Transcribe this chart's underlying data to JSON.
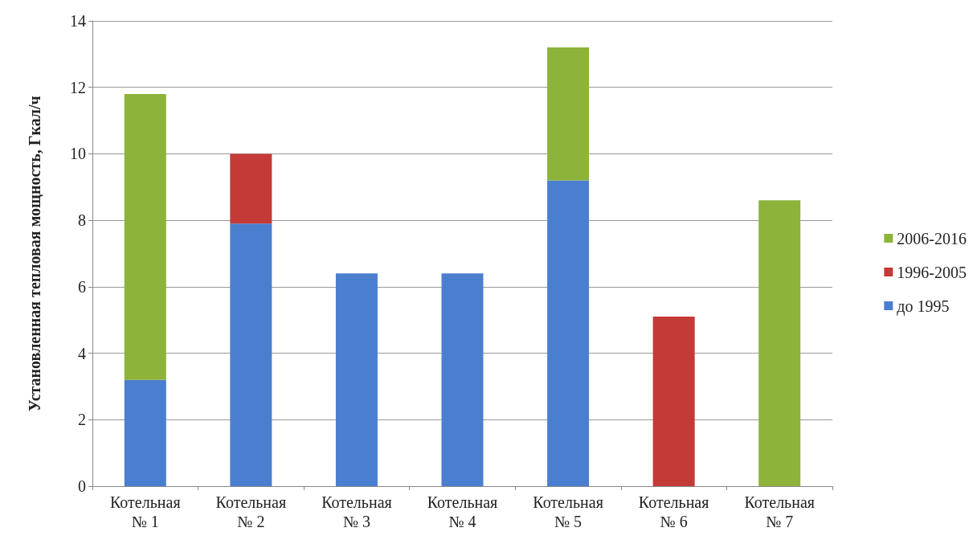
{
  "chart_data": {
    "type": "bar",
    "stacked": true,
    "ylabel": "Установленная тепловая мощность, Гкал/ч",
    "categories": [
      "Котельная\n№ 1",
      "Котельная\n№ 2",
      "Котельная\n№ 3",
      "Котельная\n№ 4",
      "Котельная\n№ 5",
      "Котельная\n№ 6",
      "Котельная\n№ 7"
    ],
    "series": [
      {
        "name": "до 1995",
        "color": "#4a7fd0",
        "values": [
          3.2,
          7.9,
          6.4,
          6.4,
          9.2,
          null,
          null
        ]
      },
      {
        "name": "1996-2005",
        "color": "#c43a36",
        "values": [
          null,
          2.1,
          null,
          null,
          null,
          5.1,
          null
        ]
      },
      {
        "name": "2006-2016",
        "color": "#8db33a",
        "values": [
          8.6,
          null,
          null,
          null,
          4.0,
          null,
          8.6
        ]
      }
    ],
    "ylim": [
      0,
      14
    ],
    "yticks": [
      0,
      2,
      4,
      6,
      8,
      10,
      12,
      14
    ],
    "grid": "y",
    "legend": "right"
  }
}
